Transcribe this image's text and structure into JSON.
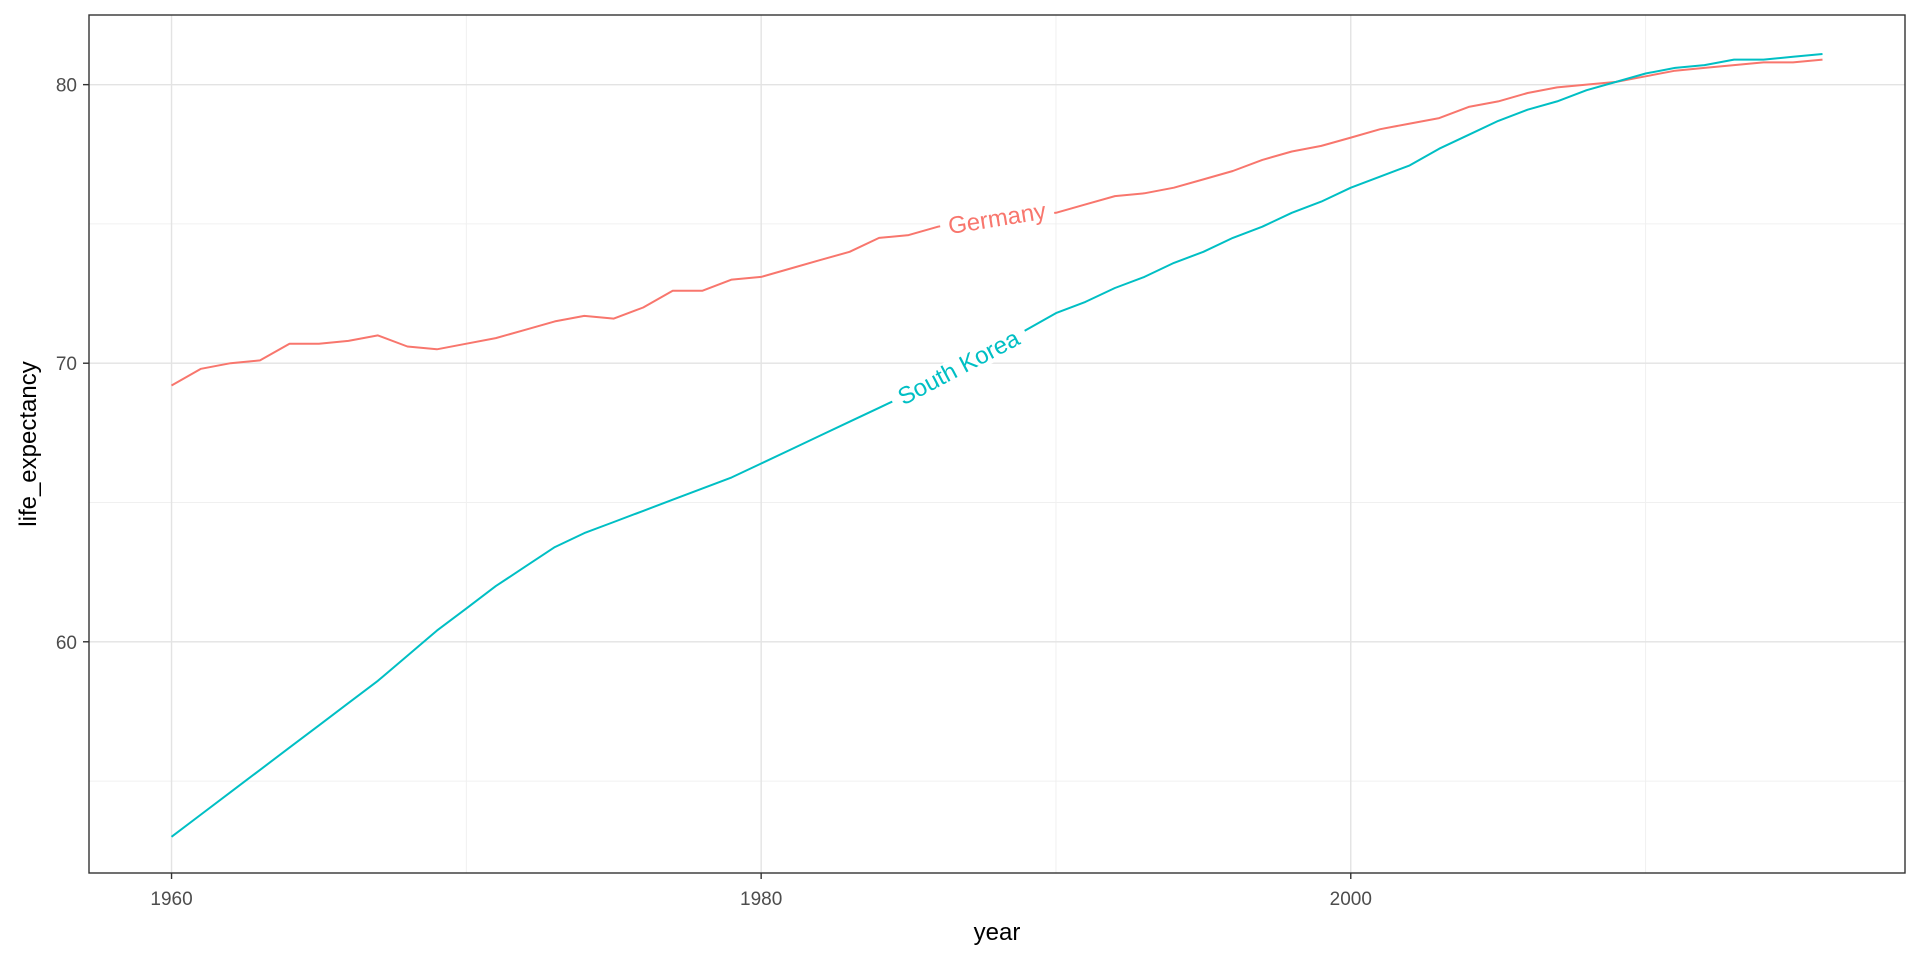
{
  "chart_data": {
    "type": "line",
    "xlabel": "year",
    "ylabel": "life_expectancy",
    "xlim": [
      1957.2,
      2018.8
    ],
    "ylim": [
      51.7,
      82.5
    ],
    "x_ticks": [
      1960,
      1980,
      2000
    ],
    "y_ticks": [
      60,
      70,
      80
    ],
    "x_minor": [
      1970,
      1990,
      2010
    ],
    "y_minor": [
      55,
      65,
      75
    ],
    "grid": true,
    "legend": "none",
    "series": [
      {
        "name": "Germany",
        "color": "#F8766D",
        "label_x": 1988,
        "x": [
          1960,
          1961,
          1962,
          1963,
          1964,
          1965,
          1966,
          1967,
          1968,
          1969,
          1970,
          1971,
          1972,
          1973,
          1974,
          1975,
          1976,
          1977,
          1978,
          1979,
          1980,
          1981,
          1982,
          1983,
          1984,
          1985,
          1986,
          1987,
          1988,
          1989,
          1990,
          1991,
          1992,
          1993,
          1994,
          1995,
          1996,
          1997,
          1998,
          1999,
          2000,
          2001,
          2002,
          2003,
          2004,
          2005,
          2006,
          2007,
          2008,
          2009,
          2010,
          2011,
          2012,
          2013,
          2014,
          2015,
          2016
        ],
        "values": [
          69.2,
          69.8,
          70.0,
          70.1,
          70.7,
          70.7,
          70.8,
          71.0,
          70.6,
          70.5,
          70.7,
          70.9,
          71.2,
          71.5,
          71.7,
          71.6,
          72.0,
          72.6,
          72.6,
          73.0,
          73.1,
          73.4,
          73.7,
          74.0,
          74.5,
          74.6,
          74.9,
          75.1,
          75.2,
          75.3,
          75.4,
          75.7,
          76.0,
          76.1,
          76.3,
          76.6,
          76.9,
          77.3,
          77.6,
          77.8,
          78.1,
          78.4,
          78.6,
          78.8,
          79.2,
          79.4,
          79.7,
          79.9,
          80.0,
          80.1,
          80.3,
          80.5,
          80.6,
          80.7,
          80.8,
          80.8,
          80.9
        ]
      },
      {
        "name": "South Korea",
        "color": "#00BFC4",
        "label_x": 1986.7,
        "x": [
          1960,
          1961,
          1962,
          1963,
          1964,
          1965,
          1966,
          1967,
          1968,
          1969,
          1970,
          1971,
          1972,
          1973,
          1974,
          1975,
          1976,
          1977,
          1978,
          1979,
          1980,
          1981,
          1982,
          1983,
          1984,
          1985,
          1986,
          1987,
          1988,
          1989,
          1990,
          1991,
          1992,
          1993,
          1994,
          1995,
          1996,
          1997,
          1998,
          1999,
          2000,
          2001,
          2002,
          2003,
          2004,
          2005,
          2006,
          2007,
          2008,
          2009,
          2010,
          2011,
          2012,
          2013,
          2014,
          2015,
          2016
        ],
        "values": [
          53.0,
          53.8,
          54.6,
          55.4,
          56.2,
          57.0,
          57.8,
          58.6,
          59.5,
          60.4,
          61.2,
          62.0,
          62.7,
          63.4,
          63.9,
          64.3,
          64.7,
          65.1,
          65.5,
          65.9,
          66.4,
          66.9,
          67.4,
          67.9,
          68.4,
          68.9,
          69.5,
          70.0,
          70.6,
          71.2,
          71.8,
          72.2,
          72.7,
          73.1,
          73.6,
          74.0,
          74.5,
          74.9,
          75.4,
          75.8,
          76.3,
          76.7,
          77.1,
          77.7,
          78.2,
          78.7,
          79.1,
          79.4,
          79.8,
          80.1,
          80.4,
          80.6,
          80.7,
          80.9,
          80.9,
          81.0,
          81.1
        ]
      }
    ]
  }
}
